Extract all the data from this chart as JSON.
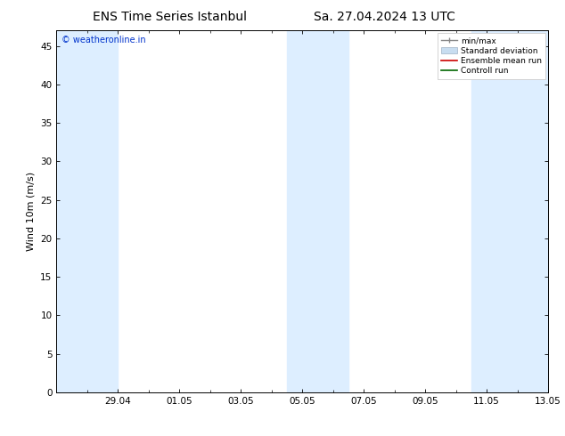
{
  "title_left": "ENS Time Series Istanbul",
  "title_right": "Sa. 27.04.2024 13 UTC",
  "ylabel": "Wind 10m (m/s)",
  "watermark": "© weatheronline.in",
  "ylim": [
    0,
    47
  ],
  "yticks": [
    0,
    5,
    10,
    15,
    20,
    25,
    30,
    35,
    40,
    45
  ],
  "xlim": [
    0,
    16
  ],
  "x_tick_labels": [
    "29.04",
    "01.05",
    "03.05",
    "05.05",
    "07.05",
    "09.05",
    "11.05",
    "13.05"
  ],
  "x_tick_positions": [
    2,
    4,
    6,
    8,
    10,
    12,
    14,
    16
  ],
  "shaded_bands": [
    {
      "xmin": 0,
      "xmax": 2,
      "color": "#ddeeff"
    },
    {
      "xmin": 7.5,
      "xmax": 9.5,
      "color": "#ddeeff"
    },
    {
      "xmin": 13.5,
      "xmax": 16,
      "color": "#ddeeff"
    }
  ],
  "bg_color": "#ffffff",
  "plot_bg_color": "#ffffff",
  "legend_labels": [
    "min/max",
    "Standard deviation",
    "Ensemble mean run",
    "Controll run"
  ],
  "minmax_color": "#888888",
  "std_color": "#c8ddf0",
  "ensemble_color": "#cc0000",
  "control_color": "#006600",
  "title_fontsize": 10,
  "label_fontsize": 8,
  "tick_fontsize": 7.5
}
